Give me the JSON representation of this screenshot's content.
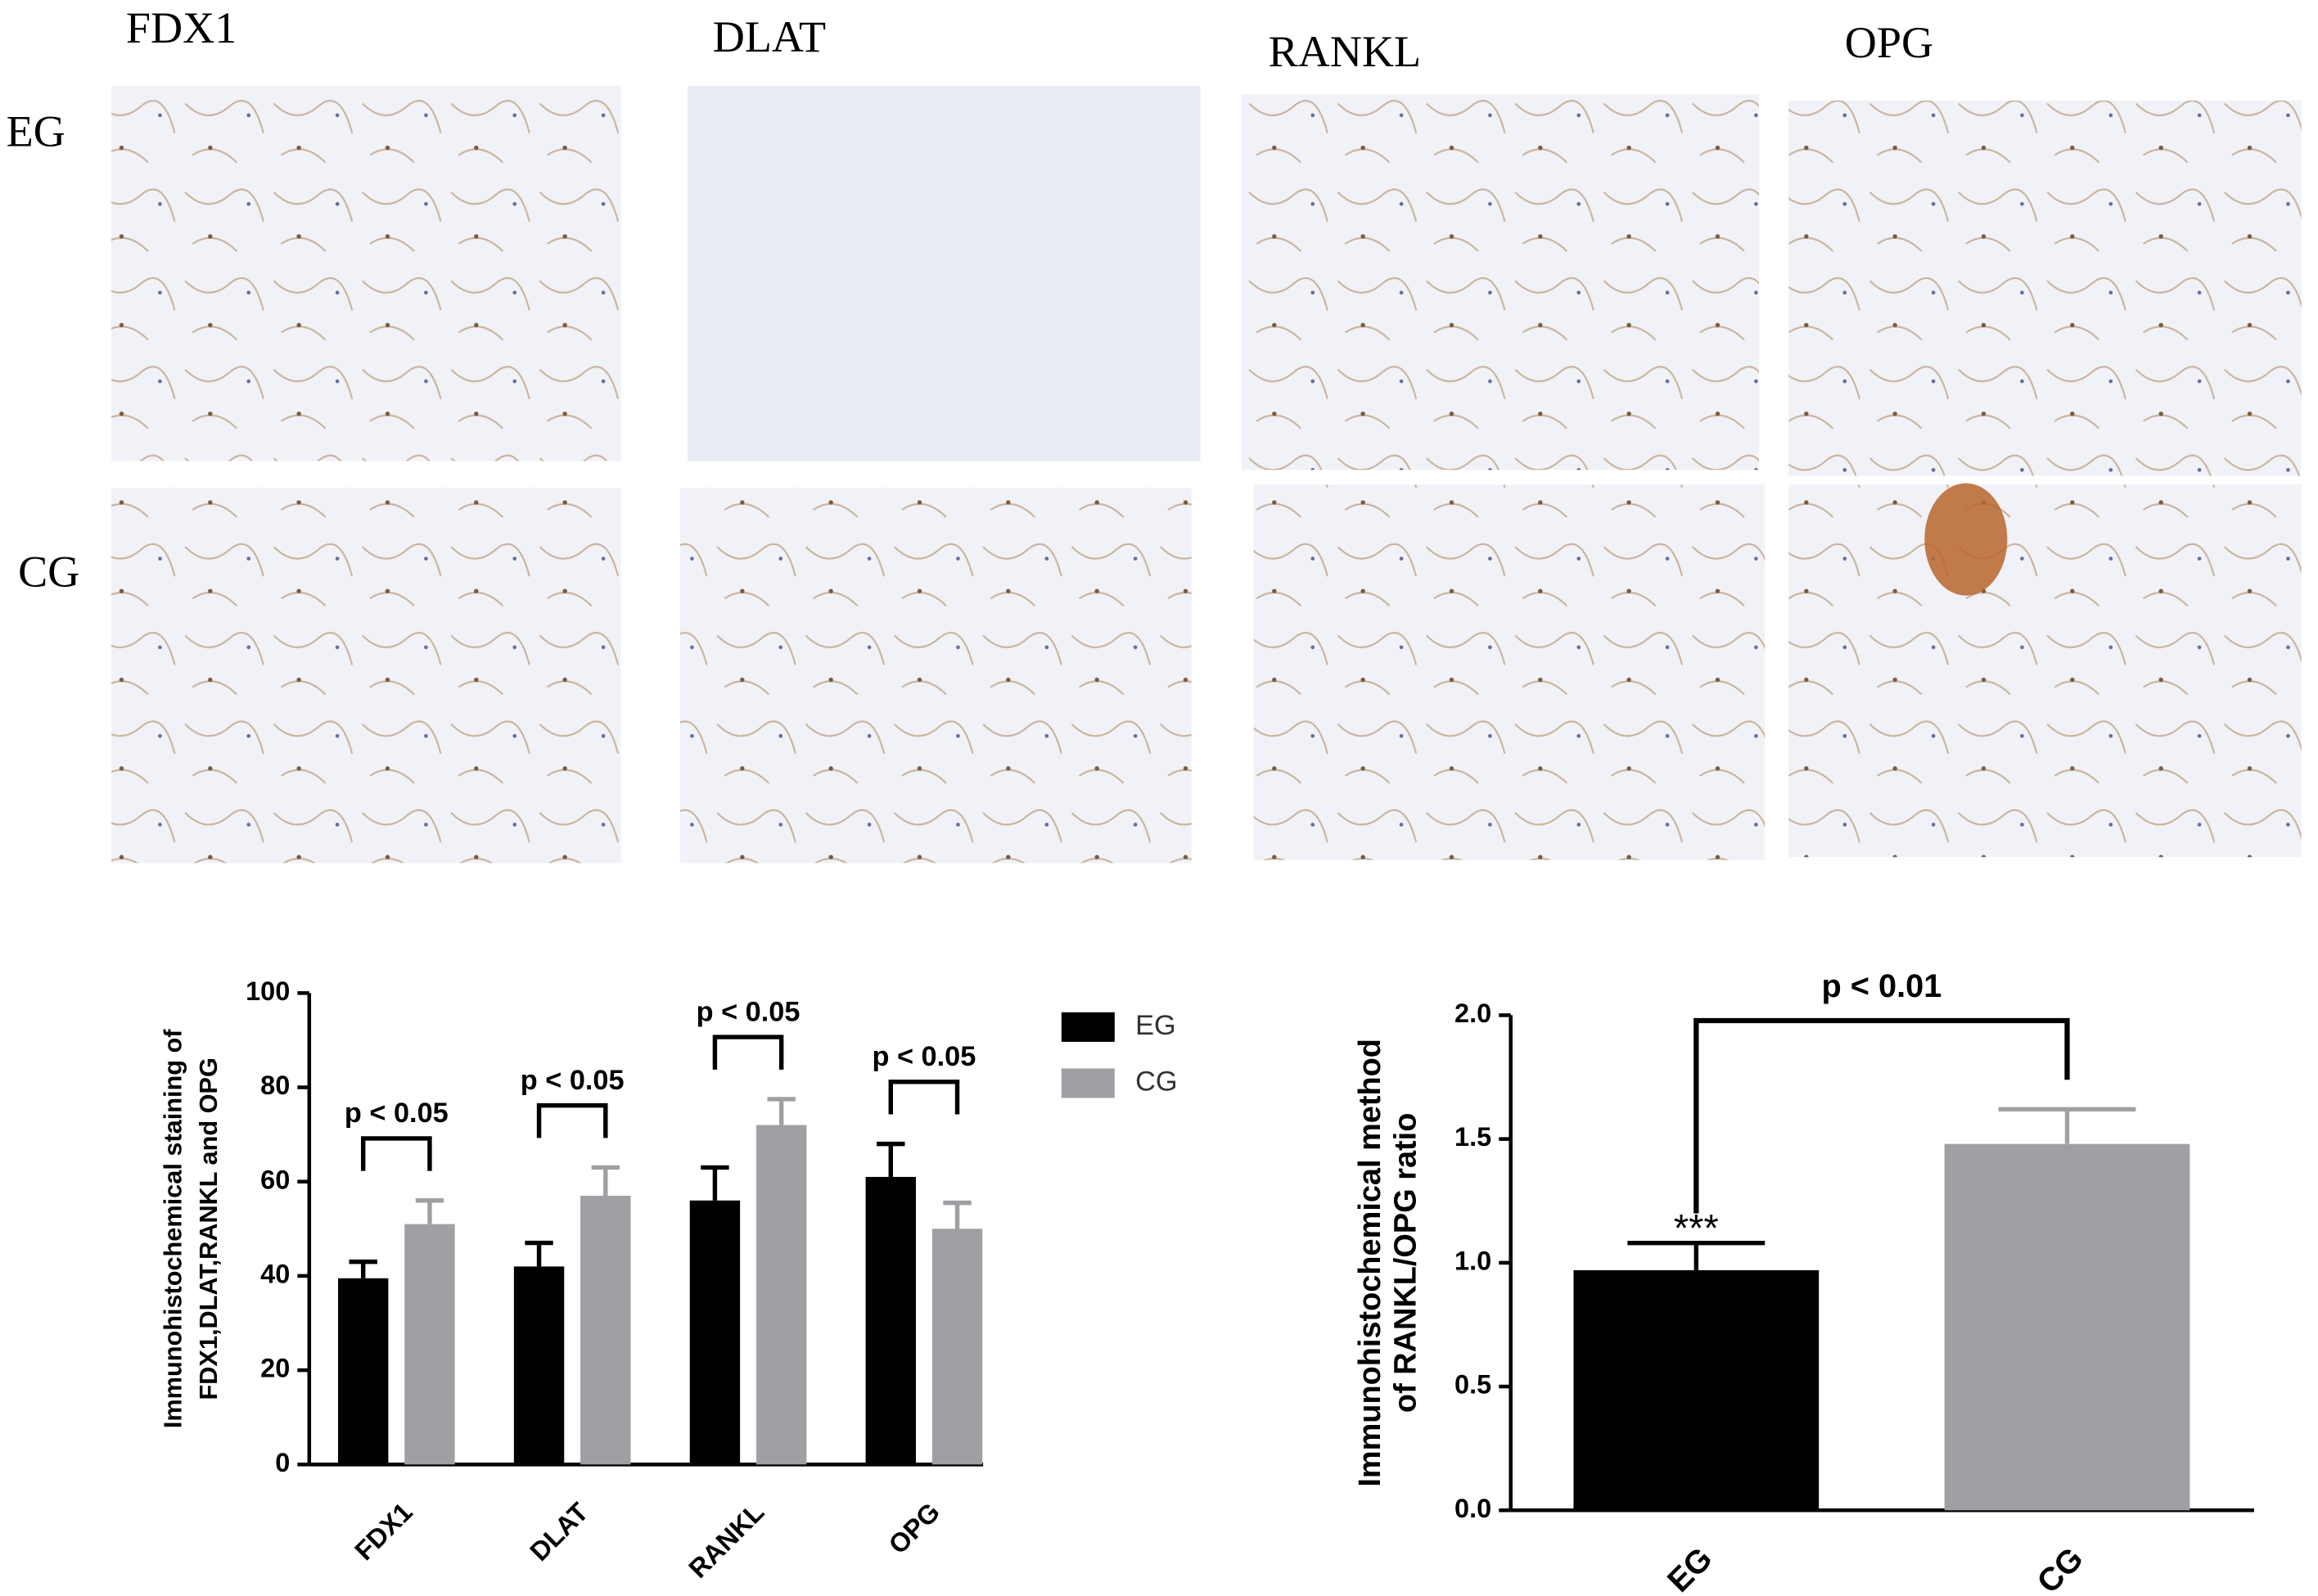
{
  "panels": {
    "columns": [
      "FDX1",
      "DLAT",
      "RANKL",
      "OPG"
    ],
    "rows": [
      "EG",
      "CG"
    ]
  },
  "chart_data": [
    {
      "type": "bar",
      "ylabel": [
        "Immunohistochemical staining of",
        "FDX1,DLAT,RANKL and OPG"
      ],
      "categories": [
        "FDX1",
        "DLAT",
        "RANKL",
        "OPG"
      ],
      "series": [
        {
          "name": "EG",
          "color": "#000000",
          "values": [
            39.5,
            42,
            56,
            61
          ],
          "errors": [
            3.5,
            5,
            7,
            7
          ]
        },
        {
          "name": "CG",
          "color": "#a0a0a4",
          "values": [
            51,
            57,
            72,
            50
          ],
          "errors": [
            5,
            6,
            5.5,
            5.5
          ]
        }
      ],
      "annotations": [
        "p < 0.05",
        "p < 0.05",
        "p < 0.05",
        "p < 0.05"
      ],
      "ylim": [
        0,
        100
      ],
      "yticks": [
        0,
        20,
        40,
        60,
        80,
        100
      ]
    },
    {
      "type": "bar",
      "ylabel": [
        "Immunohistochemical method",
        "of RANKL/OPG ratio"
      ],
      "categories": [
        "EG",
        "CG"
      ],
      "values": [
        0.97,
        1.48
      ],
      "errors": [
        0.11,
        0.14
      ],
      "colors": [
        "#000000",
        "#a0a0a4"
      ],
      "annotations": [
        "p < 0.01",
        "***"
      ],
      "ylim": [
        0,
        2.0
      ],
      "yticks": [
        {
          "value": 0,
          "label": "0.0"
        },
        0.5,
        {
          "value": 1,
          "label": "1.0"
        },
        1.5,
        {
          "value": 2,
          "label": "2.0"
        }
      ]
    }
  ]
}
